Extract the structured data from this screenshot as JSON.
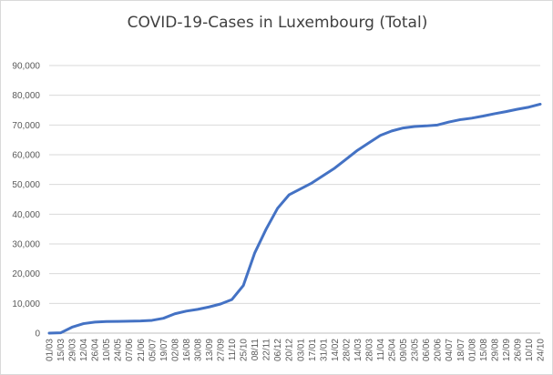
{
  "chart_data": {
    "type": "line",
    "title": "COVID-19-Cases in Luxembourg (Total)",
    "xlabel": "",
    "ylabel": "",
    "ylim": [
      0,
      90000
    ],
    "y_ticks": [
      "0",
      "10,000",
      "20,000",
      "30,000",
      "40,000",
      "50,000",
      "60,000",
      "70,000",
      "80,000",
      "90,000"
    ],
    "y_tick_values": [
      0,
      10000,
      20000,
      30000,
      40000,
      50000,
      60000,
      70000,
      80000,
      90000
    ],
    "grid": true,
    "legend": "none",
    "line_color": "#4472c4",
    "x_tick_labels": [
      "01/03",
      "15/03",
      "29/03",
      "12/04",
      "26/04",
      "10/05",
      "24/05",
      "07/06",
      "21/06",
      "05/07",
      "19/07",
      "02/08",
      "16/08",
      "30/08",
      "13/09",
      "27/09",
      "11/10",
      "25/10",
      "08/11",
      "22/11",
      "06/12",
      "20/12",
      "03/01",
      "17/01",
      "31/01",
      "14/02",
      "28/02",
      "14/03",
      "28/03",
      "11/04",
      "25/04",
      "09/05",
      "23/05",
      "06/06",
      "20/06",
      "04/07",
      "18/07",
      "01/08",
      "15/08",
      "29/08",
      "12/09",
      "26/09",
      "10/10",
      "24/10"
    ],
    "series": [
      {
        "values": [
          0,
          100,
          2000,
          3200,
          3700,
          3900,
          3950,
          4000,
          4100,
          4300,
          5000,
          6500,
          7400,
          8000,
          8800,
          9800,
          11300,
          16000,
          27000,
          35000,
          42000,
          46500,
          48500,
          50500,
          53000,
          55500,
          58500,
          61500,
          64000,
          66500,
          68000,
          69000,
          69500,
          69700,
          70000,
          71000,
          71800,
          72300,
          73000,
          73800,
          74500,
          75300,
          76000,
          77000
        ]
      }
    ]
  }
}
